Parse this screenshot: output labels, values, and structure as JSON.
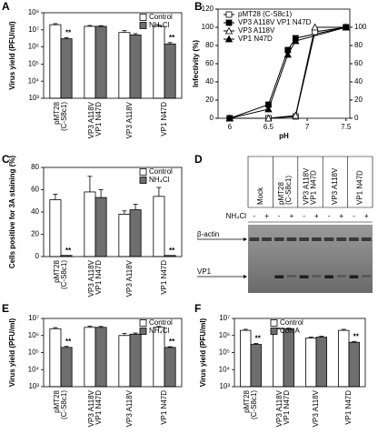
{
  "chart_data": [
    {
      "panel": "A",
      "type": "bar",
      "y_label": "Virus yield (PFU/ml)",
      "log_scale": true,
      "legend": "upper-right",
      "categories": [
        [
          "pMT28",
          "(C-S8c1)"
        ],
        [
          "VP3 A118V",
          "VP1 N47D"
        ],
        [
          "VP3 A118V"
        ],
        [
          "VP1 N47D"
        ]
      ],
      "series": [
        {
          "name": "Control",
          "color": "#ffffff",
          "values": [
            20000000,
            16000000,
            7000000,
            16000000
          ],
          "errors": [
            3000000,
            2000000,
            2000000,
            2500000
          ],
          "annotations": [
            null,
            null,
            null,
            null
          ]
        },
        {
          "name": "NH₄Cl",
          "color": "#6e6e6e",
          "values": [
            3000000,
            16000000,
            5000000,
            1500000
          ],
          "errors": [
            400000,
            1500000,
            1000000,
            300000
          ],
          "annotations": [
            "**",
            null,
            null,
            "**"
          ]
        }
      ],
      "ylim": [
        1000,
        100000000
      ],
      "yticks": [
        {
          "value": 1000,
          "label": "10³"
        },
        {
          "value": 10000,
          "label": "10⁴"
        },
        {
          "value": 100000,
          "label": "10⁵"
        },
        {
          "value": 1000000,
          "label": "10⁶"
        },
        {
          "value": 10000000,
          "label": "10⁷"
        },
        {
          "value": 100000000,
          "label": "10⁸"
        }
      ]
    },
    {
      "panel": "B",
      "type": "line",
      "x_label": "pH",
      "y_label": "Infectivity (%)",
      "legend": "upper-left",
      "series": [
        {
          "name": "pMT28 (C-S8c1)",
          "color": "#000000",
          "marker": "square",
          "fill": "open",
          "x": [
            6,
            6.5,
            6.85,
            7.1,
            7.5
          ],
          "values": [
            0,
            0,
            2,
            95,
            100
          ]
        },
        {
          "name": "VP3 A118V VP1 N47D",
          "color": "#000000",
          "marker": "square",
          "fill": "filled",
          "x": [
            6,
            6.5,
            6.75,
            6.85,
            7.5
          ],
          "values": [
            0,
            15,
            75,
            88,
            100
          ]
        },
        {
          "name": "VP3 A118V",
          "color": "#000000",
          "marker": "triangle",
          "fill": "open",
          "x": [
            6,
            6.5,
            6.85,
            7.1,
            7.5
          ],
          "values": [
            0,
            0,
            3,
            100,
            100
          ]
        },
        {
          "name": "VP1 N47D",
          "color": "#000000",
          "marker": "triangle",
          "fill": "filled",
          "x": [
            6,
            6.5,
            6.75,
            6.85,
            7.5
          ],
          "values": [
            0,
            10,
            70,
            85,
            100
          ]
        }
      ],
      "xlim": [
        5.85,
        7.55
      ],
      "xticks": [
        6,
        6.5,
        7,
        7.5
      ],
      "ylim": [
        0,
        120
      ],
      "yticks": [
        0,
        20,
        40,
        60,
        80,
        100,
        120
      ],
      "y2lim": [
        0,
        120
      ],
      "y2ticks": [
        0,
        20,
        40,
        60,
        80,
        100
      ]
    },
    {
      "panel": "C",
      "type": "bar",
      "y_label": "Cells positive for 3A staining (%)",
      "log_scale": false,
      "legend": "upper-right",
      "categories": [
        [
          "pMT28",
          "(C-S8c1)"
        ],
        [
          "VP3 A118V",
          "VP1 N47D"
        ],
        [
          "VP3 A118V"
        ],
        [
          "VP1 N47D"
        ]
      ],
      "series": [
        {
          "name": "Control",
          "color": "#ffffff",
          "values": [
            51,
            58,
            38,
            54
          ],
          "errors": [
            5,
            14,
            3,
            8
          ],
          "annotations": [
            null,
            null,
            null,
            null
          ]
        },
        {
          "name": "NH₄Cl",
          "color": "#6e6e6e",
          "values": [
            1,
            53,
            42,
            1
          ],
          "errors": [
            null,
            7,
            5,
            null
          ],
          "annotations": [
            "**",
            null,
            null,
            "**"
          ]
        }
      ],
      "ylim": [
        0,
        80
      ],
      "yticks": [
        0,
        20,
        40,
        60,
        80
      ]
    },
    {
      "panel": "D",
      "type": "blot",
      "lanes": [
        [
          "Mock"
        ],
        [
          "pMT28",
          "(C-S8c1)"
        ],
        [
          "VP3 A118V",
          "VP1 N47D"
        ],
        [
          "VP3 A118V"
        ],
        [
          "VP1 N47D"
        ]
      ],
      "treatment_label": "NH₄Cl",
      "treatment": [
        "-",
        "+",
        "-",
        "+",
        "-",
        "+",
        "-",
        "+",
        "-",
        "+"
      ],
      "band_labels": [
        "β-actin",
        "VP1"
      ]
    },
    {
      "panel": "E",
      "type": "bar",
      "y_label": "Virus yield (PFU/ml)",
      "log_scale": true,
      "legend": "upper-right",
      "categories": [
        [
          "pMT28",
          "(C-S8c1)"
        ],
        [
          "VP3 A118V",
          "VP1 N47D"
        ],
        [
          "VP3 A118V"
        ],
        [
          "VP1 N47D"
        ]
      ],
      "series": [
        {
          "name": "Control",
          "color": "#ffffff",
          "values": [
            2500000,
            3000000,
            1000000,
            3000000
          ],
          "errors": [
            400000,
            500000,
            300000,
            400000
          ],
          "annotations": [
            null,
            null,
            null,
            null
          ]
        },
        {
          "name": "NH₄Cl",
          "color": "#6e6e6e",
          "values": [
            200000,
            3000000,
            1200000,
            200000
          ],
          "errors": [
            30000,
            400000,
            200000,
            20000
          ],
          "annotations": [
            "**",
            null,
            null,
            "**"
          ]
        }
      ],
      "ylim": [
        1000,
        10000000
      ],
      "yticks": [
        {
          "value": 1000,
          "label": "10³"
        },
        {
          "value": 10000,
          "label": "10⁴"
        },
        {
          "value": 100000,
          "label": "10⁵"
        },
        {
          "value": 1000000,
          "label": "10⁶"
        },
        {
          "value": 10000000,
          "label": "10⁷"
        }
      ]
    },
    {
      "panel": "F",
      "type": "bar",
      "y_label": "Virus yield (PFU/ml)",
      "log_scale": true,
      "legend": "upper-left",
      "categories": [
        [
          "pMT28",
          "(C-S8c1)"
        ],
        [
          "VP3 A118V",
          "VP1 N47D"
        ],
        [
          "VP3 A118V"
        ],
        [
          "VP1 N47D"
        ]
      ],
      "series": [
        {
          "name": "Control",
          "color": "#ffffff",
          "values": [
            2000000,
            2500000,
            700000,
            2000000
          ],
          "errors": [
            300000,
            200000,
            100000,
            300000
          ],
          "annotations": [
            null,
            null,
            null,
            null
          ]
        },
        {
          "name": "Con A",
          "color": "#6e6e6e",
          "values": [
            300000,
            2500000,
            800000,
            400000
          ],
          "errors": [
            40000,
            200000,
            100000,
            50000
          ],
          "annotations": [
            "**",
            null,
            null,
            "**"
          ]
        }
      ],
      "ylim": [
        1000,
        10000000
      ],
      "yticks": [
        {
          "value": 1000,
          "label": "10³"
        },
        {
          "value": 10000,
          "label": "10⁴"
        },
        {
          "value": 100000,
          "label": "10⁵"
        },
        {
          "value": 1000000,
          "label": "10⁶"
        },
        {
          "value": 10000000,
          "label": "10⁷"
        }
      ]
    }
  ]
}
